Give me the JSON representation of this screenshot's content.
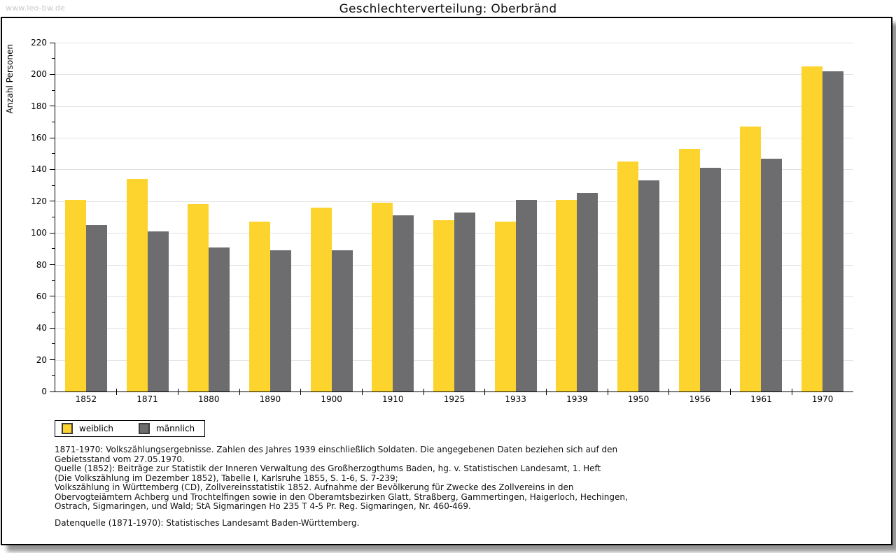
{
  "watermark": "www.leo-bw.de",
  "chart_data": {
    "type": "bar",
    "title": "Geschlechterverteilung: Oberbränd",
    "ylabel": "Anzahl Personen",
    "xlabel": "",
    "categories": [
      "1852",
      "1871",
      "1880",
      "1890",
      "1900",
      "1910",
      "1925",
      "1933",
      "1939",
      "1950",
      "1956",
      "1961",
      "1970"
    ],
    "series": [
      {
        "name": "weiblich",
        "color": "#fdd32e",
        "values": [
          121,
          134,
          118,
          107,
          116,
          119,
          108,
          107,
          121,
          145,
          153,
          167,
          205
        ]
      },
      {
        "name": "männlich",
        "color": "#6d6d6f",
        "values": [
          105,
          101,
          91,
          89,
          89,
          111,
          113,
          121,
          125,
          133,
          141,
          147,
          202
        ]
      }
    ],
    "ylim": [
      0,
      220
    ],
    "ytick_major": 20,
    "ytick_minor": 10,
    "grid": true,
    "legend_position": "bottom-left"
  },
  "notes": {
    "lines": [
      "1871-1970: Volkszählungsergebnisse. Zahlen des Jahres 1939 einschließlich Soldaten. Die angegebenen Daten beziehen sich auf den",
      "Gebietsstand vom 27.05.1970.",
      "Quelle (1852): Beiträge zur Statistik der Inneren Verwaltung des Großherzogthums Baden, hg. v. Statistischen Landesamt, 1. Heft",
      "(Die Volkszählung im Dezember 1852), Tabelle I, Karlsruhe 1855, S. 1-6, S. 7-239;",
      "Volkszählung in Württemberg (CD), Zollvereinsstatistik 1852. Aufnahme der Bevölkerung für Zwecke des Zollvereins in den",
      "Obervogteiämtern Achberg und Trochtelfingen sowie in den Oberamtsbezirken Glatt, Straßberg, Gammertingen, Haigerloch, Hechingen,",
      "Ostrach, Sigmaringen, und Wald; StA Sigmaringen Ho 235 T 4-5 Pr. Reg. Sigmaringen, Nr. 460-469."
    ],
    "datasource": "Datenquelle (1871-1970): Statistisches Landesamt Baden-Württemberg."
  },
  "colors": {
    "grid": "#e2e2e2",
    "axis": "#000000",
    "watermark": "#c9c9c9"
  }
}
